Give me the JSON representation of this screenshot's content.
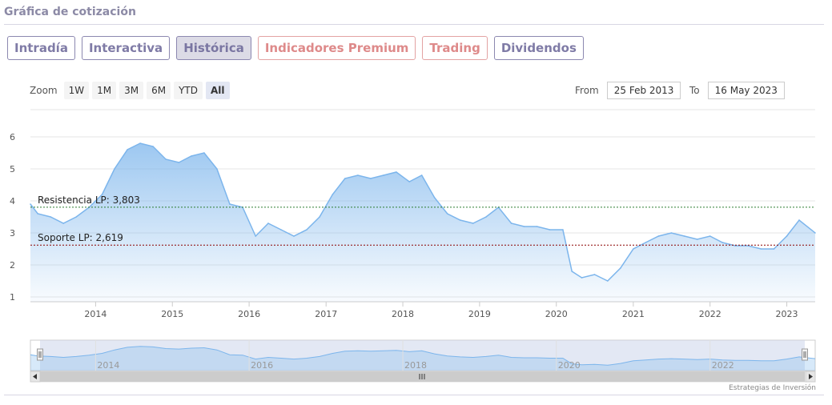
{
  "page": {
    "title": "Gráfica de cotización"
  },
  "tabs": [
    {
      "label": "Intradía",
      "active": false,
      "premium": false
    },
    {
      "label": "Interactiva",
      "active": false,
      "premium": false
    },
    {
      "label": "Histórica",
      "active": true,
      "premium": false
    },
    {
      "label": "Indicadores Premium",
      "active": false,
      "premium": true
    },
    {
      "label": "Trading",
      "active": false,
      "premium": true
    },
    {
      "label": "Dividendos",
      "active": false,
      "premium": false
    }
  ],
  "zoom": {
    "label": "Zoom",
    "buttons": [
      "1W",
      "1M",
      "3M",
      "6M",
      "YTD",
      "All"
    ],
    "selected": "All"
  },
  "range": {
    "from_label": "From",
    "from_value": "25 Feb 2013",
    "to_label": "To",
    "to_value": "16 May 2023"
  },
  "credit": "Estrategias de Inversión",
  "navigator": {
    "labels": [
      "2014",
      "2016",
      "2018",
      "2020",
      "2022"
    ]
  },
  "colors": {
    "line": "#7cb5ec",
    "resistance": "#2e7d32",
    "support": "#8b0000",
    "tab_border": "#8c88b0",
    "premium_border": "#e3a3a3"
  },
  "chart_data": {
    "type": "area",
    "x_start": "2013-02-25",
    "x_end": "2023-05-16",
    "xlabel": "",
    "ylabel": "",
    "ylim": [
      1,
      6
    ],
    "yticks": [
      1,
      2,
      3,
      4,
      5,
      6
    ],
    "xticks": [
      "2014",
      "2015",
      "2016",
      "2017",
      "2018",
      "2019",
      "2020",
      "2021",
      "2022",
      "2023"
    ],
    "grid": true,
    "series": [
      {
        "x": [
          "2013-02-25",
          "2013-04-01",
          "2013-06-01",
          "2013-08-01",
          "2013-10-01",
          "2013-12-01",
          "2014-02-01",
          "2014-04-01",
          "2014-06-01",
          "2014-08-01",
          "2014-10-01",
          "2014-12-01",
          "2015-02-01",
          "2015-04-01",
          "2015-06-01",
          "2015-08-01",
          "2015-10-01",
          "2015-12-01",
          "2016-02-01",
          "2016-04-01",
          "2016-06-01",
          "2016-08-01",
          "2016-10-01",
          "2016-12-01",
          "2017-02-01",
          "2017-04-01",
          "2017-06-01",
          "2017-08-01",
          "2017-10-01",
          "2017-12-01",
          "2018-02-01",
          "2018-04-01",
          "2018-06-01",
          "2018-08-01",
          "2018-10-01",
          "2018-12-01",
          "2019-02-01",
          "2019-04-01",
          "2019-06-01",
          "2019-08-01",
          "2019-10-01",
          "2019-12-01",
          "2020-02-01",
          "2020-03-15",
          "2020-05-01",
          "2020-07-01",
          "2020-09-01",
          "2020-11-01",
          "2021-01-01",
          "2021-03-01",
          "2021-05-01",
          "2021-07-01",
          "2021-09-01",
          "2021-11-01",
          "2022-01-01",
          "2022-03-01",
          "2022-05-01",
          "2022-07-01",
          "2022-09-01",
          "2022-11-01",
          "2023-01-01",
          "2023-03-01",
          "2023-05-16"
        ],
        "values": [
          3.9,
          3.6,
          3.5,
          3.3,
          3.5,
          3.8,
          4.2,
          5.0,
          5.6,
          5.8,
          5.7,
          5.3,
          5.2,
          5.4,
          5.5,
          5.0,
          3.9,
          3.8,
          2.9,
          3.3,
          3.1,
          2.9,
          3.1,
          3.5,
          4.2,
          4.7,
          4.8,
          4.7,
          4.8,
          4.9,
          4.6,
          4.8,
          4.1,
          3.6,
          3.4,
          3.3,
          3.5,
          3.8,
          3.3,
          3.2,
          3.2,
          3.1,
          3.1,
          1.8,
          1.6,
          1.7,
          1.5,
          1.9,
          2.5,
          2.7,
          2.9,
          3.0,
          2.9,
          2.8,
          2.9,
          2.7,
          2.6,
          2.6,
          2.5,
          2.5,
          2.9,
          3.4,
          3.0
        ]
      }
    ],
    "lines": [
      {
        "label": "Resistencia LP: 3,803",
        "value": 3.803,
        "style": "dashed"
      },
      {
        "label": "Soporte LP: 2,619",
        "value": 2.619,
        "style": "dashed"
      }
    ]
  }
}
